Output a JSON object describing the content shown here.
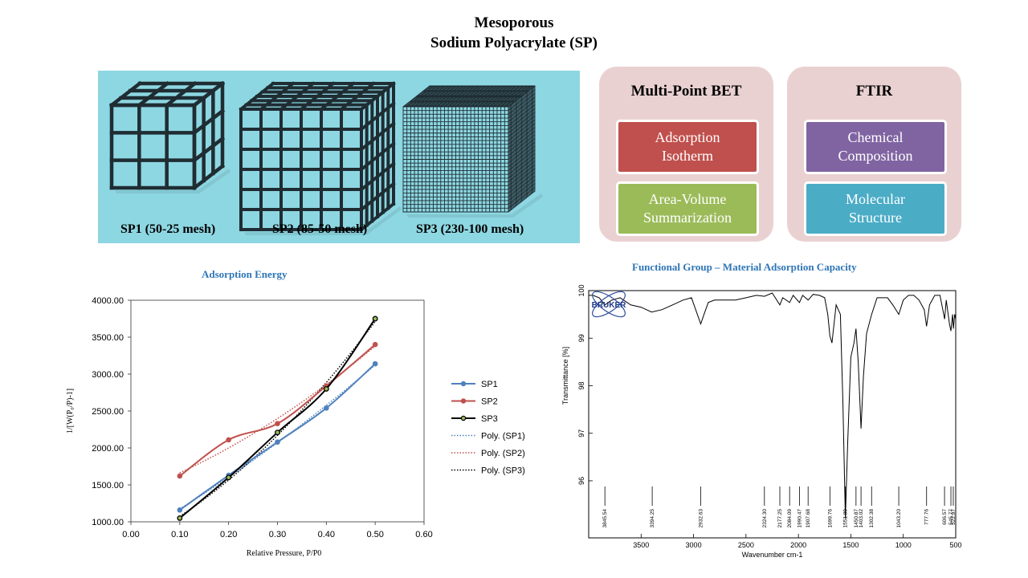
{
  "title": {
    "line1": "Mesoporous",
    "line2": "Sodium Polyacrylate (SP)"
  },
  "cubes": [
    {
      "label": "SP1 (50-25 mesh)"
    },
    {
      "label": "SP2 (85-50 mesh)"
    },
    {
      "label": "SP3 (230-100 mesh)"
    }
  ],
  "colors": {
    "panel_bg": "#8dd7e2",
    "card_bg": "#ead1d1",
    "red_box": "#c0504d",
    "green_box": "#9bbb59",
    "purple_box": "#8064a2",
    "teal_box": "#4bacc6",
    "title_blue": "#2e75b6",
    "sp1": "#4f81bd",
    "sp2": "#c0504d",
    "sp3": "#000000"
  },
  "cards": [
    {
      "title": "Multi-Point  BET",
      "boxes": [
        {
          "line1": "Adsorption",
          "line2": "Isotherm"
        },
        {
          "line1": "Area-Volume",
          "line2": "Summarization"
        }
      ]
    },
    {
      "title": "FTIR",
      "boxes": [
        {
          "line1": "Chemical",
          "line2": "Composition"
        },
        {
          "line1": "Molecular",
          "line2": "Structure"
        }
      ]
    }
  ],
  "chart_data": [
    {
      "type": "line",
      "title": "Adsorption  Energy",
      "xlabel": "Relative Pressure, P/P0",
      "ylabel": "1/[W(P₀/P)-1]",
      "xlim": [
        0,
        0.6
      ],
      "ylim": [
        1000,
        4000
      ],
      "x_ticks": [
        "0.00",
        "0.10",
        "0.20",
        "0.30",
        "0.40",
        "0.50",
        "0.60"
      ],
      "y_ticks": [
        "1000.00",
        "1500.00",
        "2000.00",
        "2500.00",
        "3000.00",
        "3500.00",
        "4000.00"
      ],
      "x": [
        0.1,
        0.2,
        0.3,
        0.4,
        0.5
      ],
      "series": [
        {
          "name": "SP1",
          "values": [
            1160,
            1630,
            2080,
            2540,
            3140
          ]
        },
        {
          "name": "SP2",
          "values": [
            1620,
            2110,
            2330,
            2840,
            3400
          ]
        },
        {
          "name": "SP3",
          "values": [
            1050,
            1600,
            2210,
            2800,
            3750
          ]
        }
      ],
      "trendlines": [
        {
          "name": "Poly. (SP1)",
          "of": "SP1"
        },
        {
          "name": "Poly. (SP2)",
          "of": "SP2"
        },
        {
          "name": "Poly. (SP3)",
          "of": "SP3"
        }
      ],
      "legend": "right",
      "grid": false
    },
    {
      "type": "line",
      "title": "Functional  Group  – Material  Adsorption  Capacity",
      "xlabel": "Wavenumber cm-1",
      "ylabel": "Transmittance [%]",
      "xlim": [
        4000,
        500
      ],
      "ylim": [
        94.8,
        100
      ],
      "x_ticks": [
        "3500",
        "3000",
        "2500",
        "2000",
        "1500",
        "1000",
        "500"
      ],
      "y_ticks": [
        "96",
        "97",
        "98",
        "99",
        "100"
      ],
      "logo": "BRUKER",
      "peaks": [
        {
          "label": "3845.54",
          "x": 3845.54
        },
        {
          "label": "3394.25",
          "x": 3394.25
        },
        {
          "label": "2932.63",
          "x": 2932.63
        },
        {
          "label": "2324.30",
          "x": 2324.3
        },
        {
          "label": "2177.25",
          "x": 2177.25
        },
        {
          "label": "2084.09",
          "x": 2084.09
        },
        {
          "label": "1990.47",
          "x": 1990.47
        },
        {
          "label": "1907.68",
          "x": 1907.68
        },
        {
          "label": "1699.76",
          "x": 1699.76
        },
        {
          "label": "1551.89",
          "x": 1551.89
        },
        {
          "label": "1450.87",
          "x": 1450.87
        },
        {
          "label": "1403.02",
          "x": 1403.02
        },
        {
          "label": "1302.38",
          "x": 1302.38
        },
        {
          "label": "1043.20",
          "x": 1043.2
        },
        {
          "label": "777.76",
          "x": 777.76
        },
        {
          "label": "606.57",
          "x": 606.57
        },
        {
          "label": "545.77",
          "x": 545.77
        },
        {
          "label": "522.97",
          "x": 522.97
        }
      ],
      "spectrum": [
        [
          4000,
          99.9
        ],
        [
          3960,
          99.9
        ],
        [
          3900,
          99.85
        ],
        [
          3845,
          99.7
        ],
        [
          3780,
          99.8
        ],
        [
          3700,
          99.85
        ],
        [
          3600,
          99.7
        ],
        [
          3500,
          99.65
        ],
        [
          3400,
          99.55
        ],
        [
          3300,
          99.6
        ],
        [
          3200,
          99.7
        ],
        [
          3100,
          99.8
        ],
        [
          3020,
          99.85
        ],
        [
          2980,
          99.6
        ],
        [
          2932,
          99.3
        ],
        [
          2900,
          99.5
        ],
        [
          2860,
          99.75
        ],
        [
          2800,
          99.8
        ],
        [
          2700,
          99.8
        ],
        [
          2600,
          99.8
        ],
        [
          2500,
          99.85
        ],
        [
          2400,
          99.9
        ],
        [
          2324,
          99.88
        ],
        [
          2250,
          99.95
        ],
        [
          2177,
          99.7
        ],
        [
          2150,
          99.85
        ],
        [
          2084,
          99.75
        ],
        [
          2050,
          99.9
        ],
        [
          1990,
          99.75
        ],
        [
          1960,
          99.9
        ],
        [
          1907,
          99.8
        ],
        [
          1860,
          99.92
        ],
        [
          1800,
          99.9
        ],
        [
          1750,
          99.85
        ],
        [
          1720,
          99.5
        ],
        [
          1700,
          99.05
        ],
        [
          1680,
          98.9
        ],
        [
          1660,
          99.3
        ],
        [
          1640,
          99.7
        ],
        [
          1600,
          99.5
        ],
        [
          1575,
          97.6
        ],
        [
          1552,
          95.2
        ],
        [
          1530,
          96.8
        ],
        [
          1500,
          98.6
        ],
        [
          1470,
          98.9
        ],
        [
          1451,
          99.2
        ],
        [
          1430,
          98.5
        ],
        [
          1403,
          97.1
        ],
        [
          1380,
          98.2
        ],
        [
          1350,
          99.1
        ],
        [
          1302,
          99.5
        ],
        [
          1250,
          99.85
        ],
        [
          1150,
          99.85
        ],
        [
          1100,
          99.7
        ],
        [
          1043,
          99.5
        ],
        [
          1000,
          99.8
        ],
        [
          950,
          99.9
        ],
        [
          900,
          99.9
        ],
        [
          850,
          99.8
        ],
        [
          800,
          99.6
        ],
        [
          778,
          99.25
        ],
        [
          750,
          99.7
        ],
        [
          700,
          99.9
        ],
        [
          650,
          99.9
        ],
        [
          606,
          99.4
        ],
        [
          590,
          99.8
        ],
        [
          560,
          99.3
        ],
        [
          546,
          99.15
        ],
        [
          530,
          99.5
        ],
        [
          522,
          99.2
        ],
        [
          510,
          99.5
        ],
        [
          500,
          99.4
        ]
      ]
    }
  ]
}
